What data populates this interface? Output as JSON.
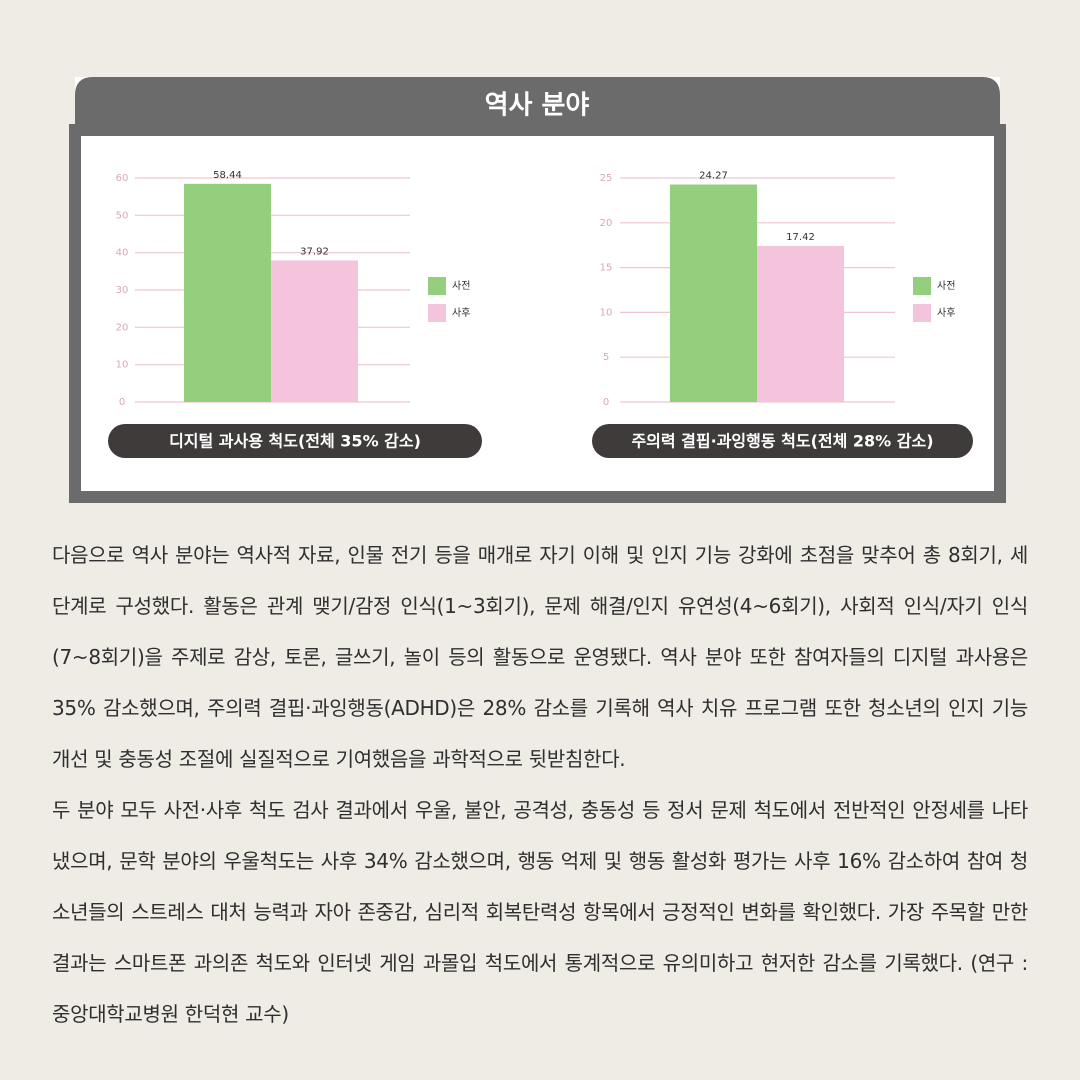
{
  "panel_title": "역사 분야",
  "chart_data": [
    {
      "type": "bar",
      "title": "디지털 과사용 척도(전체 35% 감소)",
      "categories": [
        null
      ],
      "series": [
        {
          "name": "사전",
          "color": "#93cf7c",
          "values": [
            58.44
          ]
        },
        {
          "name": "사후",
          "color": "#f4c3dc",
          "values": [
            37.92
          ]
        }
      ],
      "ylim": [
        0,
        60
      ],
      "yticks": [
        0,
        10,
        20,
        30,
        40,
        50,
        60
      ],
      "grid": true
    },
    {
      "type": "bar",
      "title": "주의력 결핍·과잉행동 척도(전체 28% 감소)",
      "categories": [
        null
      ],
      "series": [
        {
          "name": "사전",
          "color": "#93cf7c",
          "values": [
            24.27
          ]
        },
        {
          "name": "사후",
          "color": "#f4c3dc",
          "values": [
            17.42
          ]
        }
      ],
      "ylim": [
        0,
        25
      ],
      "yticks": [
        0,
        5,
        10,
        15,
        20,
        25
      ],
      "grid": true
    }
  ],
  "paragraphs": [
    "다음으로 역사 분야는 역사적 자료, 인물 전기 등을 매개로 자기 이해 및 인지 기능 강화에 초점을 맞추어 총 8회기, 세 단계로 구성했다. 활동은 관계 맺기/감정 인식(1~3회기), 문제 해결/인지 유연성(4~6회기), 사회적 인식/자기 인식(7~8회기)을 주제로 감상, 토론, 글쓰기, 놀이 등의 활동으로 운영됐다. 역사 분야 또한 참여자들의 디지털 과사용은 35% 감소했으며, 주의력 결핍·과잉행동(ADHD)은 28% 감소를 기록해 역사 치유 프로그램 또한 청소년의 인지 기능 개선 및 충동성 조절에 실질적으로 기여했음을 과학적으로 뒷받침한다.",
    "두 분야 모두 사전·사후 척도 검사 결과에서 우울, 불안, 공격성, 충동성 등 정서 문제 척도에서 전반적인 안정세를 나타냈으며, 문학 분야의 우울척도는 사후 34% 감소했으며, 행동 억제 및 행동 활성화 평가는 사후 16% 감소하여 참여 청소년들의 스트레스 대처 능력과 자아 존중감, 심리적 회복탄력성 항목에서 긍정적인 변화를 확인했다. 가장 주목할 만한 결과는 스마트폰 과의존 척도와 인터넷 게임 과몰입 척도에서 통계적으로 유의미하고 현저한 감소를 기록했다. (연구 : 중앙대학교병원 한덕현 교수)"
  ]
}
